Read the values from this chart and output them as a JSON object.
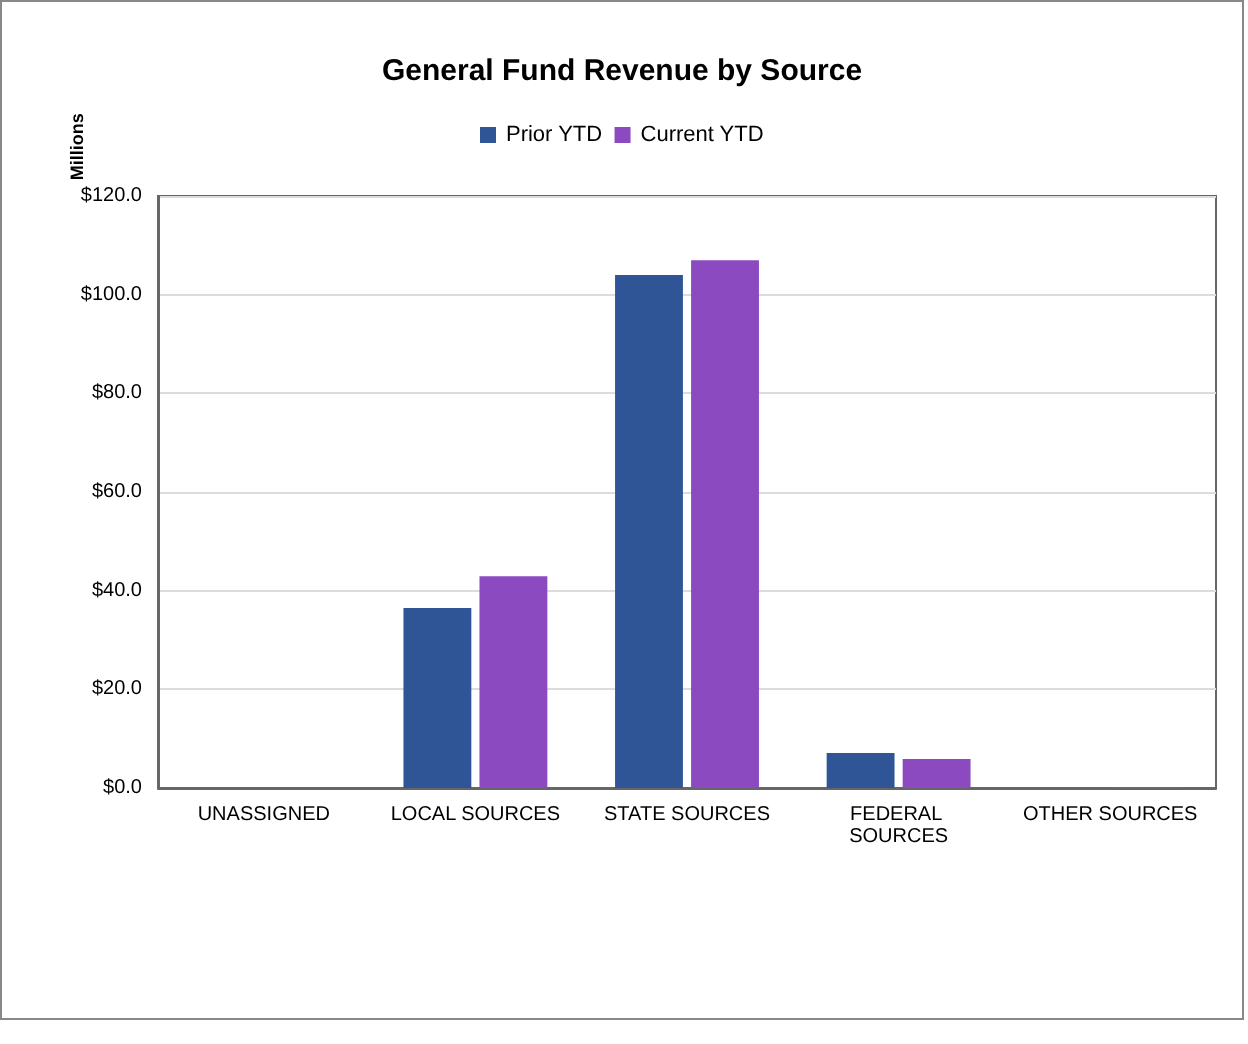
{
  "chart_data": {
    "type": "bar",
    "title": "General Fund Revenue by Source",
    "ylabel": "Millions",
    "categories": [
      "UNASSIGNED",
      "LOCAL SOURCES",
      "STATE SOURCES",
      "FEDERAL SOURCES",
      "OTHER SOURCES"
    ],
    "series": [
      {
        "name": "Prior YTD",
        "color": "#2f5597",
        "values": [
          0,
          36.5,
          104.0,
          7.1,
          0
        ]
      },
      {
        "name": "Current YTD",
        "color": "#8b4abf",
        "values": [
          0,
          42.9,
          107.0,
          5.9,
          0.2
        ]
      }
    ],
    "ylim": [
      0,
      120
    ],
    "yticks": [
      {
        "value": 0,
        "label": "$0.0"
      },
      {
        "value": 20,
        "label": "$20.0"
      },
      {
        "value": 40,
        "label": "$40.0"
      },
      {
        "value": 60,
        "label": "$60.0"
      },
      {
        "value": 80,
        "label": "$80.0"
      },
      {
        "value": 100,
        "label": "$100.0"
      },
      {
        "value": 120,
        "label": "$120.0"
      }
    ],
    "grid": "y",
    "legend": "top"
  }
}
